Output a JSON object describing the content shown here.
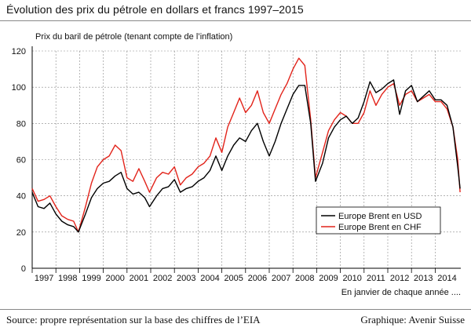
{
  "header": {
    "title": "Évolution des prix du pétrole en dollars et francs 1997–2015"
  },
  "footer": {
    "source": "Source: propre représentation sur la base des chiffres de l’EIA",
    "credit": "Graphique: Avenir Suisse"
  },
  "colors": {
    "usd": "#000000",
    "chf": "#e2231a",
    "grid": "#888888"
  },
  "chart_data": {
    "type": "line",
    "ylabel": "Prix du baril de pétrole (tenant compte de l’inflation)",
    "xlabel": "En janvier de chaque année ....",
    "ylim": [
      0,
      120
    ],
    "yticks": [
      0,
      20,
      40,
      60,
      80,
      100,
      120
    ],
    "xlim": [
      1997,
      2015.08
    ],
    "xticks": [
      "1997",
      "1998",
      "1999",
      "2000",
      "2001",
      "2002",
      "2003",
      "2004",
      "2005",
      "2006",
      "2007",
      "2008",
      "2009",
      "2010",
      "2011",
      "2012",
      "2013",
      "2014"
    ],
    "grid": true,
    "legend_position": "bottom-right",
    "series": [
      {
        "name": "Europe Brent en USD",
        "points": [
          [
            1997.0,
            42
          ],
          [
            1997.25,
            34
          ],
          [
            1997.5,
            33
          ],
          [
            1997.75,
            36
          ],
          [
            1998.0,
            30
          ],
          [
            1998.25,
            26
          ],
          [
            1998.5,
            24
          ],
          [
            1998.75,
            23
          ],
          [
            1998.95,
            20
          ],
          [
            1999.25,
            30
          ],
          [
            1999.5,
            39
          ],
          [
            1999.75,
            44
          ],
          [
            2000.0,
            47
          ],
          [
            2000.25,
            48
          ],
          [
            2000.5,
            51
          ],
          [
            2000.75,
            53
          ],
          [
            2001.0,
            44
          ],
          [
            2001.25,
            41
          ],
          [
            2001.5,
            42
          ],
          [
            2001.75,
            39
          ],
          [
            2001.95,
            34
          ],
          [
            2002.25,
            40
          ],
          [
            2002.5,
            44
          ],
          [
            2002.75,
            45
          ],
          [
            2003.0,
            49
          ],
          [
            2003.25,
            42
          ],
          [
            2003.5,
            44
          ],
          [
            2003.75,
            45
          ],
          [
            2004.0,
            48
          ],
          [
            2004.25,
            50
          ],
          [
            2004.5,
            54
          ],
          [
            2004.75,
            62
          ],
          [
            2005.0,
            54
          ],
          [
            2005.25,
            62
          ],
          [
            2005.5,
            68
          ],
          [
            2005.75,
            72
          ],
          [
            2006.0,
            70
          ],
          [
            2006.25,
            76
          ],
          [
            2006.5,
            80
          ],
          [
            2006.75,
            70
          ],
          [
            2007.0,
            62
          ],
          [
            2007.25,
            70
          ],
          [
            2007.5,
            80
          ],
          [
            2007.75,
            88
          ],
          [
            2008.0,
            96
          ],
          [
            2008.25,
            101
          ],
          [
            2008.5,
            101
          ],
          [
            2008.75,
            80
          ],
          [
            2008.95,
            48
          ],
          [
            2009.25,
            58
          ],
          [
            2009.5,
            72
          ],
          [
            2009.75,
            78
          ],
          [
            2010.0,
            82
          ],
          [
            2010.25,
            84
          ],
          [
            2010.5,
            80
          ],
          [
            2010.75,
            83
          ],
          [
            2011.0,
            92
          ],
          [
            2011.25,
            103
          ],
          [
            2011.5,
            97
          ],
          [
            2011.75,
            99
          ],
          [
            2012.0,
            102
          ],
          [
            2012.25,
            104
          ],
          [
            2012.5,
            85
          ],
          [
            2012.75,
            98
          ],
          [
            2013.0,
            101
          ],
          [
            2013.25,
            92
          ],
          [
            2013.5,
            95
          ],
          [
            2013.75,
            98
          ],
          [
            2014.0,
            93
          ],
          [
            2014.25,
            93
          ],
          [
            2014.5,
            90
          ],
          [
            2014.75,
            78
          ],
          [
            2014.95,
            56
          ],
          [
            2015.05,
            44
          ]
        ]
      },
      {
        "name": "Europe Brent en CHF",
        "points": [
          [
            1997.0,
            44
          ],
          [
            1997.25,
            37
          ],
          [
            1997.5,
            38
          ],
          [
            1997.75,
            40
          ],
          [
            1998.0,
            34
          ],
          [
            1998.25,
            29
          ],
          [
            1998.5,
            27
          ],
          [
            1998.75,
            26
          ],
          [
            1998.95,
            20
          ],
          [
            1999.25,
            34
          ],
          [
            1999.5,
            47
          ],
          [
            1999.75,
            56
          ],
          [
            2000.0,
            60
          ],
          [
            2000.25,
            62
          ],
          [
            2000.5,
            68
          ],
          [
            2000.75,
            65
          ],
          [
            2001.0,
            50
          ],
          [
            2001.25,
            48
          ],
          [
            2001.5,
            55
          ],
          [
            2001.75,
            48
          ],
          [
            2001.95,
            42
          ],
          [
            2002.25,
            50
          ],
          [
            2002.5,
            53
          ],
          [
            2002.75,
            52
          ],
          [
            2003.0,
            56
          ],
          [
            2003.25,
            46
          ],
          [
            2003.5,
            50
          ],
          [
            2003.75,
            52
          ],
          [
            2004.0,
            56
          ],
          [
            2004.25,
            58
          ],
          [
            2004.5,
            62
          ],
          [
            2004.75,
            72
          ],
          [
            2005.0,
            64
          ],
          [
            2005.25,
            78
          ],
          [
            2005.5,
            86
          ],
          [
            2005.75,
            94
          ],
          [
            2006.0,
            86
          ],
          [
            2006.25,
            90
          ],
          [
            2006.5,
            98
          ],
          [
            2006.75,
            86
          ],
          [
            2007.0,
            80
          ],
          [
            2007.25,
            88
          ],
          [
            2007.5,
            96
          ],
          [
            2007.75,
            102
          ],
          [
            2008.0,
            110
          ],
          [
            2008.25,
            116
          ],
          [
            2008.5,
            112
          ],
          [
            2008.75,
            82
          ],
          [
            2008.95,
            50
          ],
          [
            2009.25,
            64
          ],
          [
            2009.5,
            76
          ],
          [
            2009.75,
            82
          ],
          [
            2010.0,
            86
          ],
          [
            2010.25,
            84
          ],
          [
            2010.5,
            80
          ],
          [
            2010.75,
            80
          ],
          [
            2011.0,
            86
          ],
          [
            2011.25,
            98
          ],
          [
            2011.5,
            90
          ],
          [
            2011.75,
            96
          ],
          [
            2012.0,
            100
          ],
          [
            2012.25,
            102
          ],
          [
            2012.5,
            90
          ],
          [
            2012.75,
            96
          ],
          [
            2013.0,
            98
          ],
          [
            2013.25,
            92
          ],
          [
            2013.5,
            94
          ],
          [
            2013.75,
            96
          ],
          [
            2014.0,
            92
          ],
          [
            2014.25,
            92
          ],
          [
            2014.5,
            88
          ],
          [
            2014.75,
            78
          ],
          [
            2014.95,
            60
          ],
          [
            2015.05,
            42
          ]
        ]
      }
    ]
  }
}
